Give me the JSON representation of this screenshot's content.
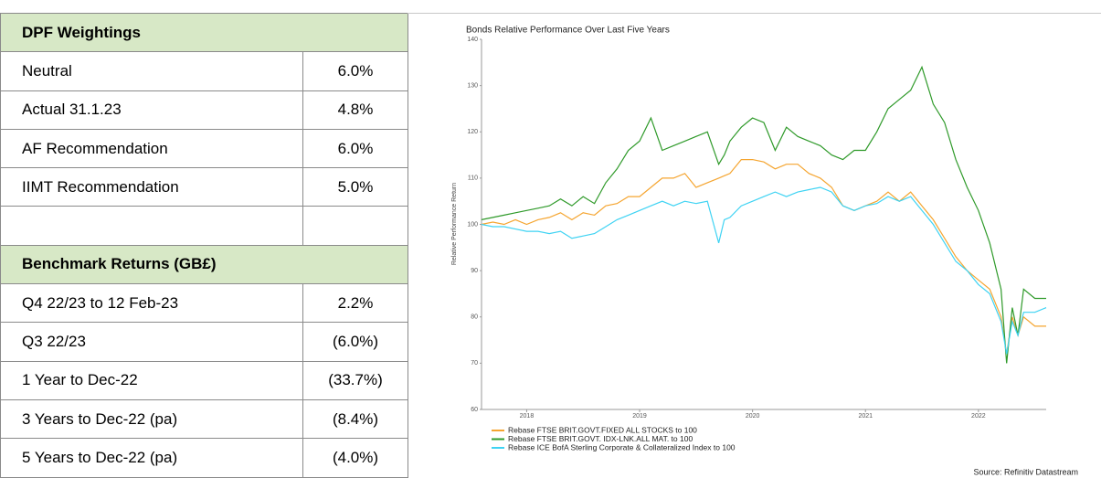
{
  "table": {
    "sections": [
      {
        "title": "DPF Weightings",
        "rows": [
          [
            "Neutral",
            "6.0%"
          ],
          [
            "Actual 31.1.23",
            "4.8%"
          ],
          [
            "AF Recommendation",
            "6.0%"
          ],
          [
            "IIMT Recommendation",
            "5.0%"
          ]
        ]
      },
      {
        "title": "Benchmark Returns (GB£)",
        "rows": [
          [
            "Q4 22/23 to 12 Feb-23",
            "2.2%"
          ],
          [
            "Q3 22/23",
            "(6.0%)"
          ],
          [
            "1 Year to Dec-22",
            "(33.7%)"
          ],
          [
            "3 Years to Dec-22 (pa)",
            "(8.4%)"
          ],
          [
            "5 Years to Dec-22 (pa)",
            "(4.0%)"
          ]
        ]
      }
    ]
  },
  "chart_data": {
    "type": "line",
    "title": "Bonds Relative Performance Over Last Five Years",
    "y_label": "Relative Performance Return",
    "source": "Source: Refinitiv Datastream",
    "x": [
      2017.6,
      2017.7,
      2017.8,
      2017.9,
      2018.0,
      2018.1,
      2018.2,
      2018.3,
      2018.4,
      2018.5,
      2018.6,
      2018.7,
      2018.8,
      2018.9,
      2019.0,
      2019.1,
      2019.2,
      2019.3,
      2019.4,
      2019.5,
      2019.6,
      2019.7,
      2019.75,
      2019.8,
      2019.9,
      2020.0,
      2020.1,
      2020.2,
      2020.3,
      2020.4,
      2020.5,
      2020.6,
      2020.7,
      2020.8,
      2020.9,
      2021.0,
      2021.1,
      2021.2,
      2021.3,
      2021.4,
      2021.5,
      2021.6,
      2021.7,
      2021.8,
      2021.9,
      2022.0,
      2022.1,
      2022.2,
      2022.25,
      2022.3,
      2022.35,
      2022.4,
      2022.5,
      2022.6
    ],
    "series": [
      {
        "name": "Rebase FTSE BRIT.GOVT.FIXED ALL STOCKS to 100",
        "color": "#f5a530",
        "values": [
          100,
          100.5,
          100,
          101,
          100,
          101,
          101.5,
          102.5,
          101,
          102.5,
          102,
          104,
          104.5,
          106,
          106,
          108,
          110,
          110,
          111,
          108,
          109,
          110,
          110.5,
          111,
          114,
          114,
          113.5,
          112,
          113,
          113,
          111,
          110,
          108,
          104,
          103,
          104,
          105,
          107,
          105,
          107,
          104,
          101,
          97,
          93,
          90,
          88,
          86,
          80,
          72,
          80,
          76,
          80,
          78,
          78
        ]
      },
      {
        "name": "Rebase FTSE BRIT.GOVT. IDX-LNK.ALL MAT. to 100",
        "color": "#2f9a2a",
        "values": [
          101,
          101.5,
          102,
          102.5,
          103,
          103.5,
          104,
          105.5,
          104,
          106,
          104.5,
          109,
          112,
          116,
          118,
          123,
          116,
          117,
          118,
          119,
          120,
          113,
          115,
          118,
          121,
          123,
          122,
          116,
          121,
          119,
          118,
          117,
          115,
          114,
          116,
          116,
          120,
          125,
          127,
          129,
          134,
          126,
          122,
          114,
          108,
          103,
          96,
          86,
          70,
          82,
          76,
          86,
          84,
          84
        ]
      },
      {
        "name": "Rebase ICE BofA Sterling Corporate & Collateralized Index to 100",
        "color": "#3fd3f3",
        "values": [
          100,
          99.5,
          99.5,
          99,
          98.5,
          98.5,
          98,
          98.5,
          97,
          97.5,
          98,
          99.5,
          101,
          102,
          103,
          104,
          105,
          104,
          105,
          104.5,
          105,
          96,
          101,
          101.5,
          104,
          105,
          106,
          107,
          106,
          107,
          107.5,
          108,
          107,
          104,
          103,
          104,
          104.5,
          106,
          105,
          106,
          103,
          100,
          96,
          92,
          90,
          87,
          85,
          79,
          72,
          79,
          76,
          81,
          81,
          82
        ]
      }
    ],
    "xlim": [
      2017.6,
      2022.6
    ],
    "xticks": [
      2018,
      2019,
      2020,
      2021,
      2022
    ],
    "ylim": [
      60,
      140
    ],
    "yticks": [
      60,
      70,
      80,
      90,
      100,
      110,
      120,
      130,
      140
    ],
    "grid": false
  }
}
